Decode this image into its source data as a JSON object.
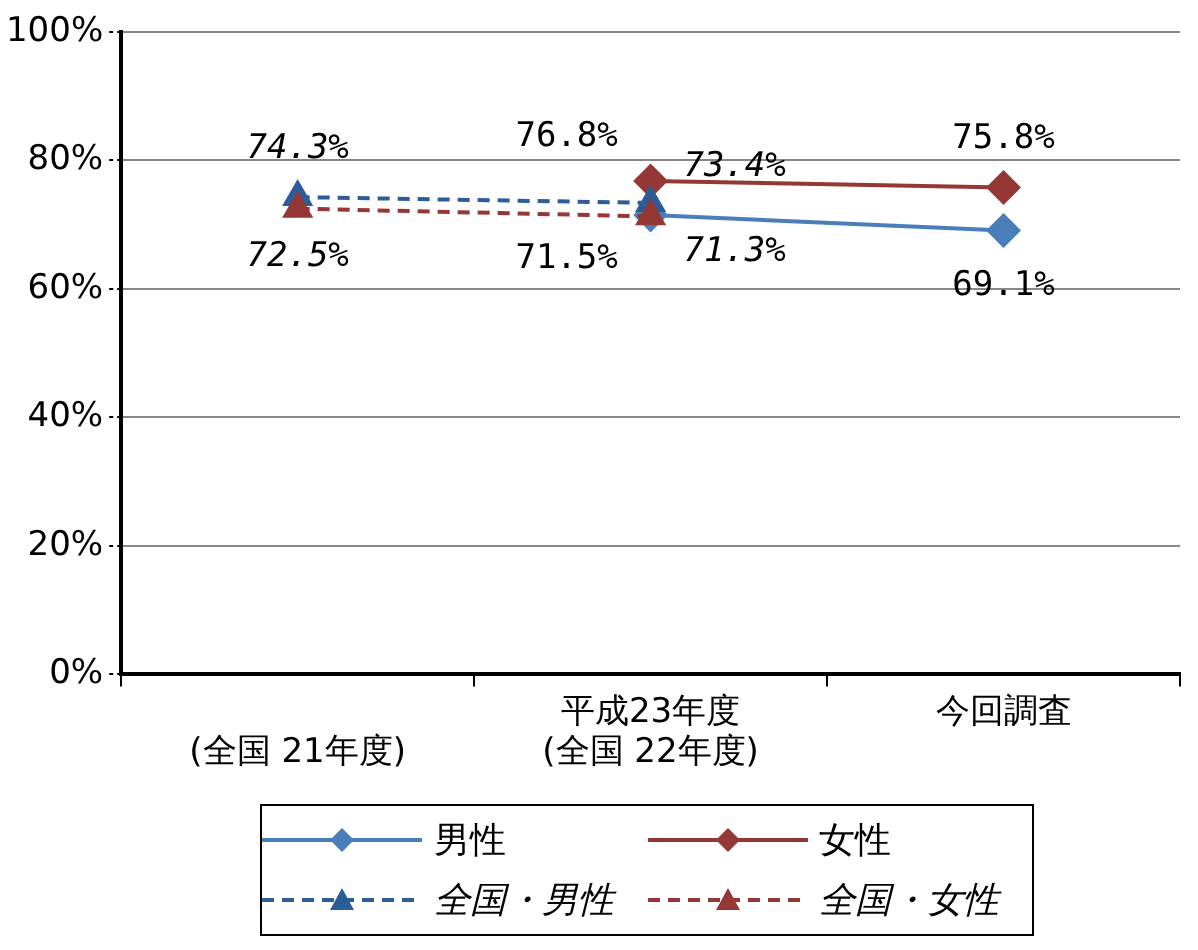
{
  "chart_data": {
    "type": "line",
    "categories": [
      "\n(全国 21年度)",
      "平成23年度\n(全国 22年度)",
      "今回調査"
    ],
    "series": [
      {
        "name": "男性",
        "color": "#4a7ebb",
        "values": [
          null,
          71.5,
          69.1
        ],
        "value_labels": [
          null,
          "71.5%",
          "69.1%"
        ],
        "marker": "diamond",
        "line_style": "solid"
      },
      {
        "name": "女性",
        "color": "#953735",
        "values": [
          null,
          76.8,
          75.8
        ],
        "value_labels": [
          null,
          "76.8%",
          "75.8%"
        ],
        "marker": "diamond",
        "line_style": "solid"
      },
      {
        "name": "全国・男性",
        "color": "#2c5d98",
        "values": [
          74.3,
          73.4,
          null
        ],
        "value_labels": [
          "74.3%",
          "73.4%",
          null
        ],
        "marker": "triangle",
        "line_style": "dashed"
      },
      {
        "name": "全国・女性",
        "color": "#953735",
        "values": [
          72.5,
          71.3,
          null
        ],
        "value_labels": [
          "72.5%",
          "71.3%",
          null
        ],
        "marker": "triangle",
        "line_style": "dashed"
      }
    ],
    "ylim": [
      0,
      100
    ],
    "yticks": [
      {
        "value": 0,
        "label": "0%"
      },
      {
        "value": 20,
        "label": "20%"
      },
      {
        "value": 40,
        "label": "40%"
      },
      {
        "value": 60,
        "label": "60%"
      },
      {
        "value": 80,
        "label": "80%"
      },
      {
        "value": 100,
        "label": "100%"
      }
    ],
    "grid": "y",
    "legend": "bottom"
  }
}
